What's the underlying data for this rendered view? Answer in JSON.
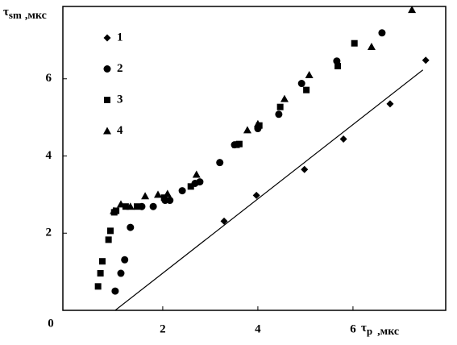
{
  "chart_data": {
    "type": "scatter",
    "y_label": "τ",
    "y_label_sub": "sm",
    "y_label_unit": ",мкс",
    "x_label": "τ",
    "x_label_sub": "p",
    "x_label_unit": ",мкс",
    "origin_label": "0",
    "xlim": [
      -0.1,
      7.95
    ],
    "ylim": [
      0,
      7.875
    ],
    "xticks": [
      2,
      4,
      6
    ],
    "yticks": [
      2,
      4,
      6
    ],
    "grid": false,
    "series": [
      {
        "name": "1",
        "marker": "diamond",
        "color": "#000000",
        "x": [
          3.29,
          3.97,
          4.98,
          5.8,
          6.78,
          7.53
        ],
        "values": [
          2.31,
          2.98,
          3.65,
          4.44,
          5.35,
          6.48
        ]
      },
      {
        "name": "2",
        "marker": "circle",
        "color": "#000000",
        "x": [
          1.0,
          1.12,
          1.2,
          1.32,
          1.56,
          1.8,
          2.05,
          2.15,
          2.41,
          2.68,
          2.78,
          3.2,
          3.51,
          4.0,
          4.44,
          4.92,
          5.66,
          6.61
        ],
        "values": [
          0.5,
          0.96,
          1.31,
          2.15,
          2.69,
          2.69,
          2.85,
          2.85,
          3.1,
          3.29,
          3.33,
          3.83,
          4.29,
          4.71,
          5.08,
          5.88,
          6.46,
          7.19
        ]
      },
      {
        "name": "3",
        "marker": "square",
        "color": "#000000",
        "x": [
          0.64,
          0.69,
          0.73,
          0.86,
          0.9,
          0.98,
          1.02,
          1.22,
          1.46,
          2.03,
          2.59,
          3.61,
          4.03,
          4.47,
          5.02,
          5.68,
          6.03
        ],
        "values": [
          0.62,
          0.96,
          1.27,
          1.83,
          2.06,
          2.54,
          2.58,
          2.69,
          2.69,
          2.92,
          3.21,
          4.31,
          4.79,
          5.27,
          5.71,
          6.33,
          6.92
        ]
      },
      {
        "name": "4",
        "marker": "triangle",
        "color": "#000000",
        "x": [
          0.97,
          1.12,
          1.32,
          1.63,
          1.9,
          2.1,
          2.71,
          3.54,
          3.78,
          4.0,
          4.56,
          5.08,
          6.39,
          7.24
        ],
        "values": [
          2.58,
          2.75,
          2.69,
          2.96,
          3.0,
          3.02,
          3.52,
          4.29,
          4.67,
          4.83,
          5.48,
          6.1,
          6.83,
          7.79
        ]
      }
    ],
    "fit_line": {
      "color": "#000000",
      "x": [
        1.0,
        7.47
      ],
      "values": [
        0,
        6.23
      ]
    }
  }
}
